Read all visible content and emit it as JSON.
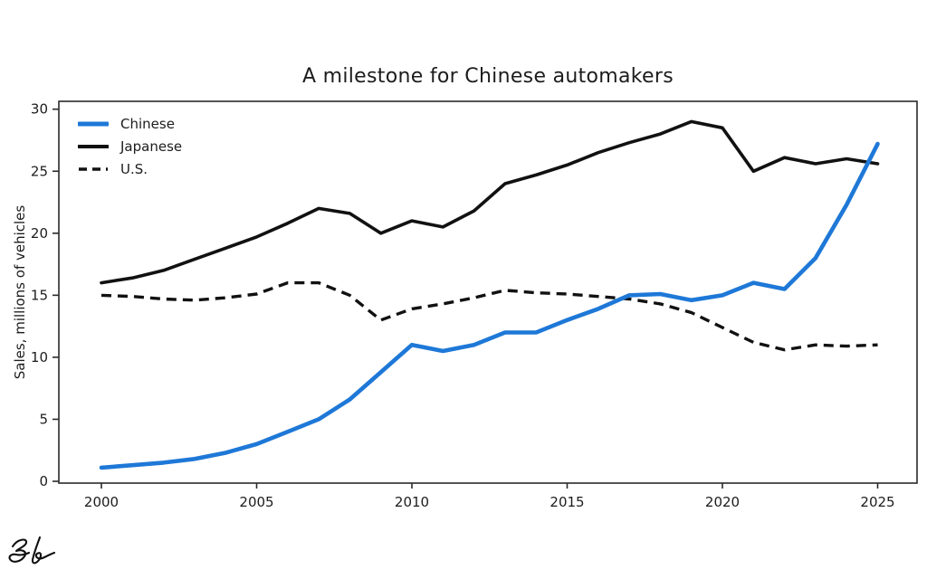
{
  "title": "A milestone for Chinese automakers",
  "signature_text": "zb",
  "colors": {
    "chinese_blue": "#1e78d7",
    "line_black": "#111111",
    "axis": "#2a2a2a",
    "text": "#1c1c1c",
    "background": "#ffffff"
  },
  "chart_data": {
    "type": "line",
    "title": "A milestone for Chinese automakers",
    "xlabel": "",
    "ylabel": "Sales, millions of vehicles",
    "x": [
      2000,
      2001,
      2002,
      2003,
      2004,
      2005,
      2006,
      2007,
      2008,
      2009,
      2010,
      2011,
      2012,
      2013,
      2014,
      2015,
      2016,
      2017,
      2018,
      2019,
      2020,
      2021,
      2022,
      2023,
      2024,
      2025
    ],
    "series": [
      {
        "name": "Chinese",
        "color": "#1e78d7",
        "style": "solid",
        "width": 4.6,
        "values": [
          1.1,
          1.3,
          1.5,
          1.8,
          2.3,
          3.0,
          4.0,
          5.0,
          6.6,
          8.8,
          11.0,
          10.5,
          11.0,
          12.0,
          12.0,
          13.0,
          13.9,
          15.0,
          15.1,
          14.6,
          15.0,
          16.0,
          15.5,
          18.0,
          22.3,
          27.2
        ]
      },
      {
        "name": "Japanese",
        "color": "#111111",
        "style": "solid",
        "width": 3.6,
        "values": [
          16.0,
          16.4,
          17.0,
          17.9,
          18.8,
          19.7,
          20.8,
          22.0,
          21.6,
          20.0,
          21.0,
          20.5,
          21.8,
          24.0,
          24.7,
          25.5,
          26.5,
          27.3,
          28.0,
          29.0,
          28.5,
          25.0,
          26.1,
          25.6,
          26.0,
          25.6
        ]
      },
      {
        "name": "U.S.",
        "color": "#111111",
        "style": "dashed",
        "width": 3.4,
        "values": [
          15.0,
          14.9,
          14.7,
          14.6,
          14.8,
          15.1,
          16.0,
          16.0,
          15.0,
          13.0,
          13.9,
          14.3,
          14.8,
          15.4,
          15.2,
          15.1,
          14.9,
          14.7,
          14.3,
          13.6,
          12.4,
          11.2,
          10.6,
          11.0,
          10.9,
          11.0
        ]
      }
    ],
    "xticks": [
      2000,
      2005,
      2010,
      2015,
      2020,
      2025
    ],
    "yticks": [
      0,
      5,
      10,
      15,
      20,
      25,
      30
    ],
    "xlim": [
      1998.6,
      2026.3
    ],
    "ylim": [
      0,
      30
    ],
    "grid": false,
    "legend": {
      "position": "upper-left",
      "frame": false
    }
  }
}
